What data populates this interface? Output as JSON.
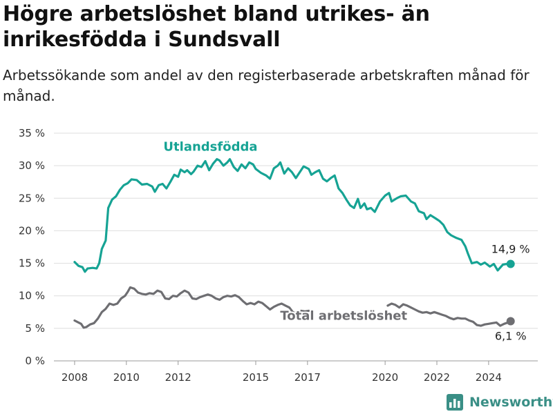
{
  "title": "Högre arbetslöshet bland utrikes- än inrikesfödda i Sundsvall",
  "subtitle": "Arbetssökande som andel av den registerbaserade arbetskraften månad för månad.",
  "brand": {
    "name": "Newsworthy",
    "icon": "bar-chart-logo-icon",
    "color": "#3a8f86"
  },
  "chart_data": {
    "type": "line",
    "title": "Högre arbetslöshet bland utrikes- än inrikesfödda i Sundsvall",
    "subtitle": "Arbetssökande som andel av den registerbaserade arbetskraften månad för månad.",
    "xlabel": "",
    "ylabel": "",
    "xlim": [
      2007.2,
      2025.9
    ],
    "ylim": [
      0,
      35
    ],
    "y_ticks": [
      0,
      5,
      10,
      15,
      20,
      25,
      30,
      35
    ],
    "y_tick_labels": [
      "0 %",
      "5 %",
      "10 %",
      "15 %",
      "20 %",
      "25 %",
      "30 %",
      "35 %"
    ],
    "x_ticks": [
      2008,
      2010,
      2012,
      2015,
      2017,
      2020,
      2022,
      2024
    ],
    "x_tick_labels": [
      "2008",
      "2010",
      "2012",
      "2015",
      "2017",
      "2020",
      "2022",
      "2024"
    ],
    "grid": "horizontal",
    "series": [
      {
        "name": "Utlandsfödda",
        "color": "#16a394",
        "end_label": "14,9 %",
        "points": [
          [
            2008.0,
            15.2
          ],
          [
            2008.15,
            14.6
          ],
          [
            2008.3,
            14.4
          ],
          [
            2008.4,
            13.7
          ],
          [
            2008.5,
            14.2
          ],
          [
            2008.7,
            14.3
          ],
          [
            2008.85,
            14.2
          ],
          [
            2008.95,
            15.0
          ],
          [
            2009.05,
            17.2
          ],
          [
            2009.2,
            18.5
          ],
          [
            2009.3,
            23.5
          ],
          [
            2009.45,
            24.8
          ],
          [
            2009.6,
            25.3
          ],
          [
            2009.75,
            26.3
          ],
          [
            2009.9,
            27.0
          ],
          [
            2010.05,
            27.3
          ],
          [
            2010.2,
            27.9
          ],
          [
            2010.4,
            27.8
          ],
          [
            2010.6,
            27.1
          ],
          [
            2010.8,
            27.2
          ],
          [
            2011.0,
            26.8
          ],
          [
            2011.1,
            26.0
          ],
          [
            2011.25,
            27.0
          ],
          [
            2011.4,
            27.2
          ],
          [
            2011.55,
            26.5
          ],
          [
            2011.7,
            27.5
          ],
          [
            2011.85,
            28.6
          ],
          [
            2012.0,
            28.3
          ],
          [
            2012.1,
            29.4
          ],
          [
            2012.25,
            29.0
          ],
          [
            2012.35,
            29.3
          ],
          [
            2012.5,
            28.7
          ],
          [
            2012.6,
            29.1
          ],
          [
            2012.75,
            30.0
          ],
          [
            2012.9,
            29.8
          ],
          [
            2013.05,
            30.7
          ],
          [
            2013.2,
            29.3
          ],
          [
            2013.35,
            30.3
          ],
          [
            2013.5,
            31.0
          ],
          [
            2013.6,
            30.8
          ],
          [
            2013.75,
            30.0
          ],
          [
            2013.9,
            30.5
          ],
          [
            2014.0,
            31.0
          ],
          [
            2014.15,
            29.8
          ],
          [
            2014.3,
            29.2
          ],
          [
            2014.45,
            30.2
          ],
          [
            2014.6,
            29.6
          ],
          [
            2014.75,
            30.5
          ],
          [
            2014.9,
            30.2
          ],
          [
            2015.0,
            29.5
          ],
          [
            2015.2,
            28.9
          ],
          [
            2015.4,
            28.5
          ],
          [
            2015.55,
            28.0
          ],
          [
            2015.7,
            29.6
          ],
          [
            2015.85,
            30.0
          ],
          [
            2015.95,
            30.5
          ],
          [
            2016.1,
            28.8
          ],
          [
            2016.25,
            29.6
          ],
          [
            2016.4,
            29.0
          ],
          [
            2016.55,
            28.1
          ],
          [
            2016.7,
            29.0
          ],
          [
            2016.85,
            29.9
          ],
          [
            2017.05,
            29.5
          ],
          [
            2017.15,
            28.6
          ],
          [
            2017.3,
            29.0
          ],
          [
            2017.45,
            29.3
          ],
          [
            2017.6,
            28.0
          ],
          [
            2017.75,
            27.6
          ],
          [
            2017.9,
            28.1
          ],
          [
            2018.05,
            28.5
          ],
          [
            2018.2,
            26.5
          ],
          [
            2018.35,
            25.8
          ],
          [
            2018.5,
            24.8
          ],
          [
            2018.65,
            23.9
          ],
          [
            2018.8,
            23.5
          ],
          [
            2018.95,
            24.9
          ],
          [
            2019.05,
            23.5
          ],
          [
            2019.2,
            24.2
          ],
          [
            2019.3,
            23.3
          ],
          [
            2019.45,
            23.5
          ],
          [
            2019.6,
            22.9
          ],
          [
            2019.8,
            24.5
          ],
          [
            2020.0,
            25.4
          ],
          [
            2020.15,
            25.8
          ],
          [
            2020.25,
            24.5
          ],
          [
            2020.45,
            25.0
          ],
          [
            2020.6,
            25.3
          ],
          [
            2020.8,
            25.4
          ],
          [
            2021.0,
            24.5
          ],
          [
            2021.15,
            24.2
          ],
          [
            2021.3,
            23.0
          ],
          [
            2021.5,
            22.7
          ],
          [
            2021.6,
            21.8
          ],
          [
            2021.75,
            22.4
          ],
          [
            2021.95,
            21.9
          ],
          [
            2022.1,
            21.5
          ],
          [
            2022.25,
            20.9
          ],
          [
            2022.4,
            19.8
          ],
          [
            2022.55,
            19.3
          ],
          [
            2022.75,
            18.9
          ],
          [
            2022.95,
            18.6
          ],
          [
            2023.1,
            17.6
          ],
          [
            2023.2,
            16.5
          ],
          [
            2023.35,
            15.0
          ],
          [
            2023.55,
            15.2
          ],
          [
            2023.7,
            14.8
          ],
          [
            2023.85,
            15.1
          ],
          [
            2024.05,
            14.5
          ],
          [
            2024.2,
            14.9
          ],
          [
            2024.35,
            13.9
          ],
          [
            2024.55,
            14.8
          ],
          [
            2024.7,
            14.9
          ],
          [
            2024.85,
            14.9
          ]
        ]
      },
      {
        "name": "Total arbetslöshet",
        "color": "#6e6e72",
        "end_label": "6,1 %",
        "points": [
          [
            2008.0,
            6.2
          ],
          [
            2008.15,
            5.9
          ],
          [
            2008.25,
            5.7
          ],
          [
            2008.35,
            5.1
          ],
          [
            2008.45,
            5.2
          ],
          [
            2008.6,
            5.6
          ],
          [
            2008.75,
            5.8
          ],
          [
            2008.9,
            6.5
          ],
          [
            2009.05,
            7.5
          ],
          [
            2009.2,
            8.0
          ],
          [
            2009.35,
            8.8
          ],
          [
            2009.5,
            8.6
          ],
          [
            2009.65,
            8.8
          ],
          [
            2009.8,
            9.6
          ],
          [
            2009.95,
            10.0
          ],
          [
            2010.05,
            10.6
          ],
          [
            2010.15,
            11.3
          ],
          [
            2010.3,
            11.1
          ],
          [
            2010.45,
            10.5
          ],
          [
            2010.6,
            10.3
          ],
          [
            2010.75,
            10.2
          ],
          [
            2010.9,
            10.4
          ],
          [
            2011.05,
            10.3
          ],
          [
            2011.2,
            10.8
          ],
          [
            2011.35,
            10.6
          ],
          [
            2011.5,
            9.6
          ],
          [
            2011.65,
            9.5
          ],
          [
            2011.8,
            10.0
          ],
          [
            2011.95,
            9.9
          ],
          [
            2012.1,
            10.4
          ],
          [
            2012.25,
            10.8
          ],
          [
            2012.4,
            10.5
          ],
          [
            2012.55,
            9.6
          ],
          [
            2012.7,
            9.5
          ],
          [
            2012.85,
            9.8
          ],
          [
            2013.0,
            10.0
          ],
          [
            2013.15,
            10.2
          ],
          [
            2013.3,
            10.0
          ],
          [
            2013.45,
            9.6
          ],
          [
            2013.6,
            9.4
          ],
          [
            2013.75,
            9.8
          ],
          [
            2013.9,
            10.0
          ],
          [
            2014.05,
            9.9
          ],
          [
            2014.2,
            10.1
          ],
          [
            2014.35,
            9.8
          ],
          [
            2014.5,
            9.2
          ],
          [
            2014.65,
            8.7
          ],
          [
            2014.8,
            8.9
          ],
          [
            2014.95,
            8.7
          ],
          [
            2015.1,
            9.1
          ],
          [
            2015.25,
            8.9
          ],
          [
            2015.4,
            8.4
          ],
          [
            2015.55,
            7.9
          ],
          [
            2015.7,
            8.3
          ],
          [
            2015.85,
            8.6
          ],
          [
            2016.0,
            8.8
          ],
          [
            2016.15,
            8.5
          ],
          [
            2016.3,
            8.2
          ],
          [
            2016.45,
            7.4
          ],
          [
            2016.6,
            7.5
          ],
          [
            2016.75,
            7.7
          ],
          [
            2016.9,
            7.6
          ],
          [
            2017.05,
            7.7
          ],
          [
            2020.1,
            8.5
          ],
          [
            2020.25,
            8.8
          ],
          [
            2020.4,
            8.6
          ],
          [
            2020.55,
            8.2
          ],
          [
            2020.7,
            8.7
          ],
          [
            2020.85,
            8.5
          ],
          [
            2021.0,
            8.2
          ],
          [
            2021.15,
            7.9
          ],
          [
            2021.3,
            7.6
          ],
          [
            2021.45,
            7.4
          ],
          [
            2021.6,
            7.5
          ],
          [
            2021.75,
            7.3
          ],
          [
            2021.9,
            7.5
          ],
          [
            2022.05,
            7.3
          ],
          [
            2022.2,
            7.1
          ],
          [
            2022.35,
            6.9
          ],
          [
            2022.5,
            6.6
          ],
          [
            2022.65,
            6.4
          ],
          [
            2022.8,
            6.6
          ],
          [
            2022.95,
            6.5
          ],
          [
            2023.1,
            6.5
          ],
          [
            2023.25,
            6.2
          ],
          [
            2023.4,
            6.0
          ],
          [
            2023.55,
            5.5
          ],
          [
            2023.7,
            5.4
          ],
          [
            2023.85,
            5.6
          ],
          [
            2024.0,
            5.7
          ],
          [
            2024.15,
            5.8
          ],
          [
            2024.3,
            5.9
          ],
          [
            2024.45,
            5.4
          ],
          [
            2024.6,
            5.7
          ],
          [
            2024.75,
            5.9
          ],
          [
            2024.85,
            6.1
          ]
        ]
      }
    ]
  }
}
